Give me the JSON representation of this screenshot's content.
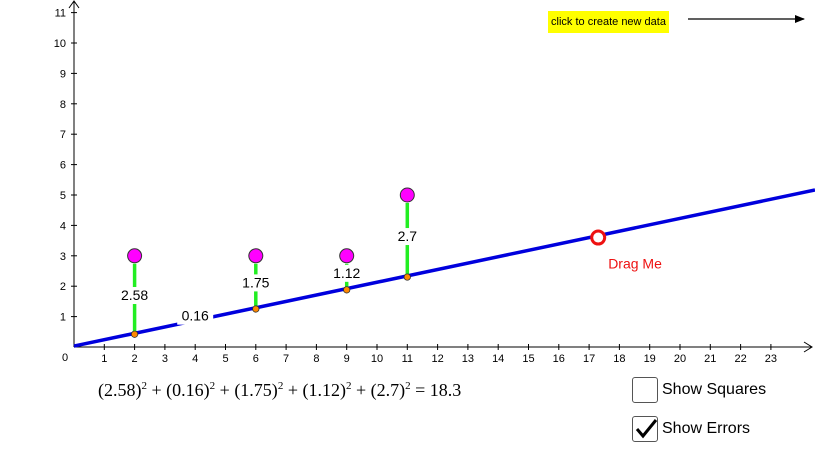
{
  "chart_data": {
    "type": "scatter",
    "x_ticks": [
      "1",
      "2",
      "3",
      "4",
      "5",
      "6",
      "7",
      "8",
      "9",
      "10",
      "11",
      "12",
      "13",
      "14",
      "15",
      "16",
      "17",
      "18",
      "19",
      "20",
      "21",
      "22",
      "23"
    ],
    "y_ticks": [
      "1",
      "2",
      "3",
      "4",
      "5",
      "6",
      "7",
      "8",
      "9",
      "10",
      "11"
    ],
    "origin_label": "0",
    "xlim": [
      0,
      24
    ],
    "ylim": [
      0,
      11
    ],
    "points": [
      {
        "x": 2,
        "y": 3
      },
      {
        "x": 6,
        "y": 3
      },
      {
        "x": 9,
        "y": 3
      },
      {
        "x": 11,
        "y": 5
      }
    ],
    "fit_line": {
      "intercept": 0.03,
      "slope": 0.21
    },
    "errors": [
      {
        "x": 2,
        "fit_y": 0.42,
        "label": "2.58"
      },
      {
        "x": 6,
        "fit_y": 1.25,
        "label": "1.75"
      },
      {
        "x": 9,
        "fit_y": 1.88,
        "label": "1.12"
      },
      {
        "x": 11,
        "fit_y": 2.3,
        "label": "2.7"
      }
    ],
    "extra_label": {
      "x": 4,
      "y": 0.9,
      "text": "0.16"
    },
    "drag_handle": {
      "x": 17.3,
      "y": 3.6,
      "label": "Drag Me"
    },
    "colors": {
      "line": "#0000dd",
      "points": "#ff00ff",
      "errors": "#22ee22",
      "handle": "#ee1111",
      "foot": "#ff8800"
    }
  },
  "create_button": {
    "label": "click to create new data"
  },
  "formula": {
    "terms": [
      "(2.58)",
      "(0.16)",
      "(1.75)",
      "(1.12)",
      "(2.7)"
    ],
    "exponent": "2",
    "plus": "+",
    "equals": "=",
    "result": "18.3"
  },
  "checkboxes": [
    {
      "label": "Show Squares",
      "checked": false
    },
    {
      "label": "Show Errors",
      "checked": true
    }
  ]
}
